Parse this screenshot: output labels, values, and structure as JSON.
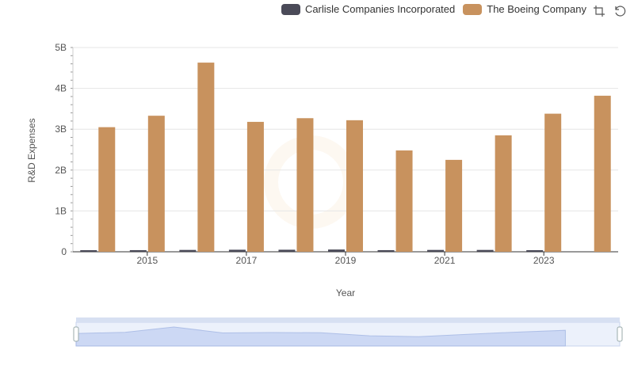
{
  "chart_data": {
    "type": "bar",
    "title": "",
    "xlabel": "Year",
    "ylabel": "R&D Expenses",
    "x": [
      2014,
      2015,
      2016,
      2017,
      2018,
      2019,
      2020,
      2021,
      2022,
      2023,
      2024
    ],
    "x_tick_labels": [
      "2015",
      "2017",
      "2019",
      "2021",
      "2023"
    ],
    "x_tick_years": [
      2015,
      2017,
      2019,
      2021,
      2023
    ],
    "ylim": [
      0,
      5000000000
    ],
    "y_ticks": [
      0,
      1000000000,
      2000000000,
      3000000000,
      4000000000,
      5000000000
    ],
    "y_tick_labels": [
      "0",
      "1B",
      "2B",
      "3B",
      "4B",
      "5B"
    ],
    "series": [
      {
        "name": "Carlisle Companies Incorporated",
        "color": "#4a4a58",
        "values": [
          30000000,
          40000000,
          45000000,
          50000000,
          50000000,
          55000000,
          40000000,
          45000000,
          45000000,
          30000000,
          null
        ]
      },
      {
        "name": "The Boeing Company",
        "color": "#c8925e",
        "values": [
          3050000000,
          3330000000,
          4630000000,
          3180000000,
          3270000000,
          3220000000,
          2480000000,
          2250000000,
          2850000000,
          3380000000,
          3820000000
        ]
      }
    ],
    "legend_position": "top-right",
    "grid": true
  },
  "toolbox": {
    "zoom_icon": "zoom-icon",
    "restore_icon": "restore-icon"
  }
}
